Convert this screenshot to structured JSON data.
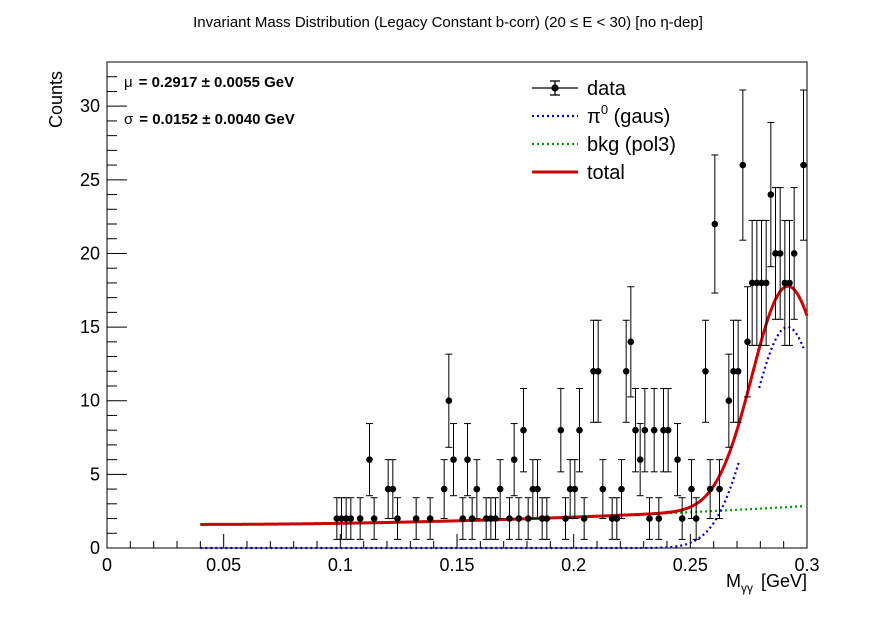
{
  "chart_data": {
    "type": "scatter",
    "title": "Invariant Mass Distribution (Legacy Constant b-corr)   (20 ≤ E < 30)   [no η-dep]",
    "xlabel": "M",
    "xlabel_sub": "γγ",
    "xlabel_unit": "[GeV]",
    "ylabel": "Counts",
    "xlim": [
      0,
      0.3
    ],
    "ylim": [
      0,
      33
    ],
    "x_ticks": [
      0,
      0.05,
      0.1,
      0.15,
      0.2,
      0.25,
      0.3
    ],
    "x_tick_labels": [
      "0",
      "0.05",
      "0.1",
      "0.15",
      "0.2",
      "0.25",
      "0.3"
    ],
    "y_ticks": [
      0,
      5,
      10,
      15,
      20,
      25,
      30
    ],
    "y_tick_labels": [
      "0",
      "5",
      "10",
      "15",
      "20",
      "25",
      "30"
    ],
    "grid": false,
    "legend_position": "top-right",
    "stats": [
      {
        "symbol": "μ",
        "text": "= 0.2917  ± 0.0055 GeV"
      },
      {
        "symbol": "σ",
        "text": "= 0.0152  ± 0.0040 GeV"
      }
    ],
    "series": [
      {
        "name": "data",
        "kind": "points-with-errors",
        "color": "#000000",
        "x": [
          0.0985,
          0.1005,
          0.1025,
          0.1045,
          0.1085,
          0.1125,
          0.1145,
          0.1205,
          0.1225,
          0.1245,
          0.1325,
          0.1385,
          0.1445,
          0.1465,
          0.1485,
          0.1525,
          0.1545,
          0.1565,
          0.1585,
          0.1625,
          0.1645,
          0.1665,
          0.1685,
          0.1725,
          0.1745,
          0.1765,
          0.1785,
          0.1805,
          0.1825,
          0.1845,
          0.1865,
          0.1885,
          0.1945,
          0.1965,
          0.1985,
          0.2005,
          0.2025,
          0.2045,
          0.2085,
          0.2105,
          0.2125,
          0.2165,
          0.2185,
          0.2205,
          0.2225,
          0.2245,
          0.2265,
          0.2285,
          0.2305,
          0.2325,
          0.2345,
          0.2365,
          0.2385,
          0.2405,
          0.2445,
          0.2465,
          0.2505,
          0.2525,
          0.2565,
          0.2585,
          0.2605,
          0.2625,
          0.2665,
          0.2685,
          0.2705,
          0.2725,
          0.2745,
          0.2765,
          0.2785,
          0.2805,
          0.2825,
          0.2845,
          0.2865,
          0.2885,
          0.2905,
          0.2925,
          0.2945,
          0.2985
        ],
        "y": [
          2,
          2,
          2,
          2,
          2,
          6,
          2,
          4,
          4,
          2,
          2,
          2,
          4,
          10,
          6,
          2,
          6,
          2,
          4,
          2,
          2,
          2,
          4,
          2,
          6,
          2,
          8,
          2,
          4,
          4,
          2,
          2,
          8,
          2,
          4,
          4,
          8,
          2,
          12,
          12,
          4,
          2,
          2,
          4,
          12,
          14,
          8,
          6,
          8,
          2,
          8,
          2,
          8,
          8,
          6,
          2,
          4,
          2,
          12,
          4,
          22,
          4,
          10,
          12,
          12,
          26,
          14,
          18,
          18,
          18,
          18,
          24,
          20,
          20,
          18,
          18,
          20,
          26
        ]
      },
      {
        "name": "π⁰ (gaus)",
        "label_main": "π",
        "label_sup": "0",
        "label_rest": " (gaus)",
        "kind": "dotted-line",
        "color": "#0000bb"
      },
      {
        "name": "bkg (pol3)",
        "kind": "dotted-line",
        "color": "#009900"
      },
      {
        "name": "total",
        "kind": "solid-line",
        "color": "#cc0000"
      }
    ]
  }
}
